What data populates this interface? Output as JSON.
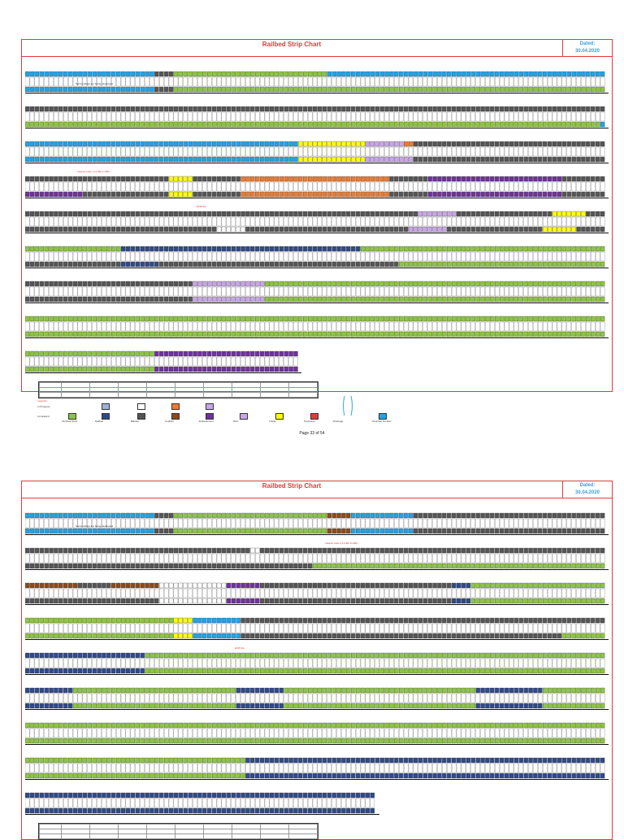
{
  "document": {
    "title": "Railbed Strip Chart",
    "dated_label": "Dated:",
    "date": "30.04.2020",
    "page_footer": "Page  33 of 54"
  },
  "pages": [
    {
      "subtitle": "",
      "labels_red": [
        "Viaduct Cells 1,2,3,B4 to SBS",
        "ROB SG"
      ],
      "labels_blue": [],
      "notes": [
        "Surroundings are being developed"
      ],
      "legend": {
        "title": "Legends :",
        "in_progress": "In Progress",
        "completed": "Completed",
        "items": [
          "Finished Work",
          "Railbed",
          "Blanket",
          "Cut&Fill",
          "Embankment",
          "RCC",
          "Tracks",
          "Structures",
          "Drainage",
          "Structure Number"
        ]
      }
    },
    {
      "subtitle": "",
      "labels_red": [
        "Viaduct Cells 1,2,3,B4 To SBS",
        "ROB SG"
      ],
      "labels_blue": [],
      "notes": [
        "Surroundings are being developed"
      ]
    }
  ],
  "colors": {
    "blue": "#1fa3e6",
    "dark": "#555555",
    "green": "#8cc63f",
    "white": "#ffffff",
    "yellow": "#ffff00",
    "orange": "#f07a2a",
    "purple": "#7030a0",
    "lavender": "#c9a6e6",
    "navy": "#2f4a8a",
    "brown": "#8a4a1a",
    "red": "#e23b3b"
  }
}
